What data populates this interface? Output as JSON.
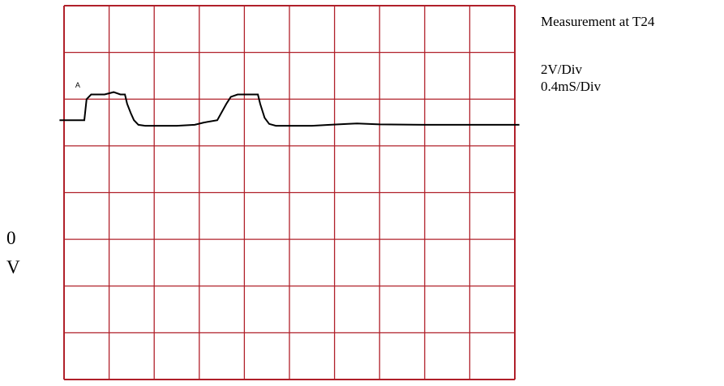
{
  "chart_data": {
    "type": "line",
    "title": "Measurement at T24",
    "annotations": [
      "2V/Div",
      "0.4mS/Div"
    ],
    "grid": true,
    "grid_color": "#b0202a",
    "trace_color": "#000000",
    "channel_marker": "A",
    "zero_label": "0",
    "unit_label": "V",
    "xlabel": "",
    "ylabel": "",
    "xlim": [
      0,
      10
    ],
    "ylim": [
      0,
      8
    ],
    "x_unit": "div",
    "y_unit": "div",
    "series": [
      {
        "values": [
          [
            -0.1,
            5.55
          ],
          [
            0.45,
            5.55
          ],
          [
            0.5,
            6.0
          ],
          [
            0.6,
            6.1
          ],
          [
            0.75,
            6.1
          ],
          [
            0.9,
            6.1
          ],
          [
            1.1,
            6.15
          ],
          [
            1.25,
            6.1
          ],
          [
            1.35,
            6.1
          ],
          [
            1.4,
            5.9
          ],
          [
            1.48,
            5.7
          ],
          [
            1.55,
            5.55
          ],
          [
            1.65,
            5.45
          ],
          [
            1.8,
            5.43
          ],
          [
            2.5,
            5.43
          ],
          [
            2.9,
            5.45
          ],
          [
            3.1,
            5.5
          ],
          [
            3.4,
            5.55
          ],
          [
            3.6,
            5.9
          ],
          [
            3.7,
            6.05
          ],
          [
            3.85,
            6.1
          ],
          [
            4.15,
            6.1
          ],
          [
            4.3,
            6.1
          ],
          [
            4.35,
            5.9
          ],
          [
            4.45,
            5.6
          ],
          [
            4.55,
            5.47
          ],
          [
            4.7,
            5.43
          ],
          [
            5.5,
            5.43
          ],
          [
            5.9,
            5.45
          ],
          [
            6.3,
            5.47
          ],
          [
            6.5,
            5.48
          ],
          [
            7.0,
            5.46
          ],
          [
            8.0,
            5.45
          ],
          [
            9.0,
            5.45
          ],
          [
            9.9,
            5.45
          ],
          [
            10.1,
            5.45
          ]
        ]
      }
    ]
  }
}
